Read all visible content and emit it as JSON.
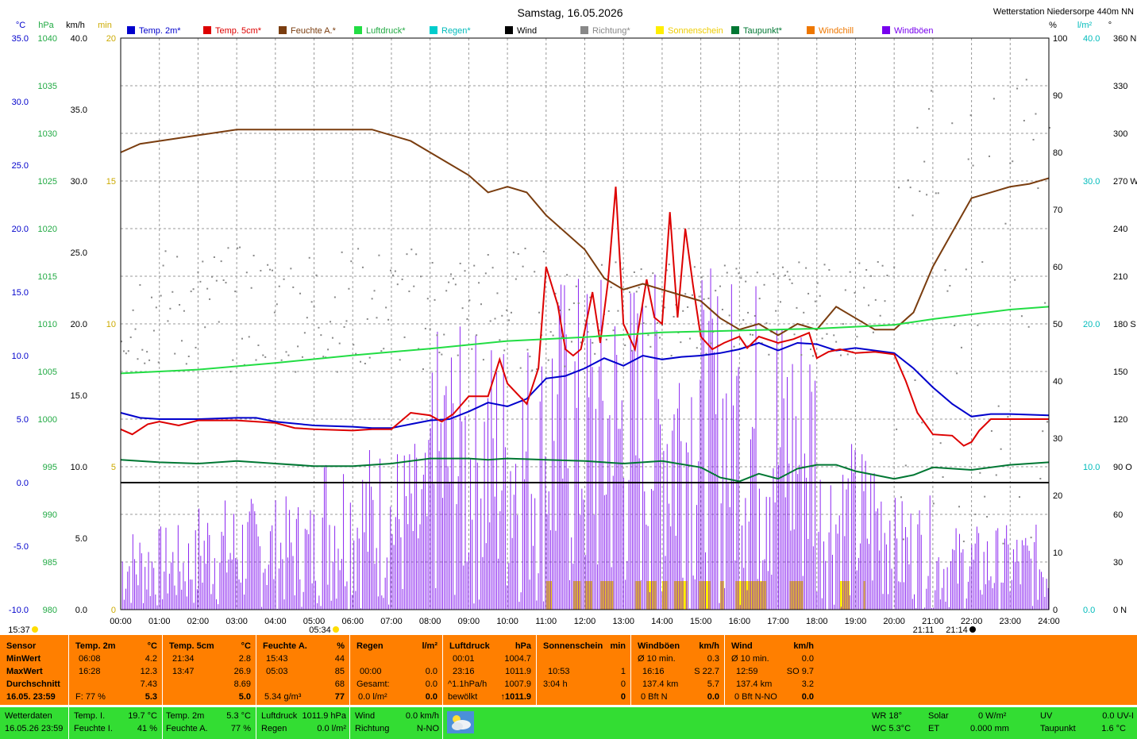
{
  "title": "Samstag, 16.05.2026",
  "station": "Wetterstation Niedersorpe 440m NN",
  "colors": {
    "temp2m": "#0000cc",
    "temp5cm": "#dd0000",
    "feuchte": "#7a3d0f",
    "luftdruck": "#22dd44",
    "regen": "#00cccc",
    "wind": "#000000",
    "richtung": "#888888",
    "sonne": "#ffee00",
    "taupunkt": "#007733",
    "windchill": "#ee7700",
    "windboeen": "#7700ee",
    "panel": "#ff7f00",
    "footer": "#33dd33"
  },
  "legend": [
    {
      "label": "Temp. 2m*",
      "color": "#0000cc"
    },
    {
      "label": "Temp. 5cm*",
      "color": "#dd0000"
    },
    {
      "label": "Feuchte A.*",
      "color": "#7a3d0f"
    },
    {
      "label": "Luftdruck*",
      "color": "#22dd44"
    },
    {
      "label": "Regen*",
      "color": "#00cccc"
    },
    {
      "label": "Wind",
      "color": "#000000"
    },
    {
      "label": "Richtung*",
      "color": "#888888"
    },
    {
      "label": "Sonnenschein",
      "color": "#ffee00"
    },
    {
      "label": "Taupunkt*",
      "color": "#007733"
    },
    {
      "label": "Windchill",
      "color": "#ee7700"
    },
    {
      "label": "Windböen",
      "color": "#7700ee"
    }
  ],
  "chart_data": {
    "type": "line",
    "x_unit": "hour",
    "xlim": [
      0,
      24
    ],
    "x_ticks": [
      "00:00",
      "01:00",
      "02:00",
      "03:00",
      "04:00",
      "05:00",
      "06:00",
      "07:00",
      "08:00",
      "09:00",
      "10:00",
      "11:00",
      "12:00",
      "13:00",
      "14:00",
      "15:00",
      "16:00",
      "17:00",
      "18:00",
      "19:00",
      "20:00",
      "21:00",
      "22:00",
      "23:00",
      "24:00"
    ],
    "axes": {
      "temp": {
        "unit": "°C",
        "ticks": [
          "35.0",
          "30.0",
          "25.0",
          "20.0",
          "15.0",
          "10.0",
          "5.0",
          "0.0",
          "-5.0",
          "-10.0"
        ],
        "range": [
          -10,
          35
        ]
      },
      "pressure": {
        "unit": "hPa",
        "ticks": [
          "1040",
          "1035",
          "1030",
          "1025",
          "1020",
          "1015",
          "1010",
          "1005",
          "1000",
          "995",
          "990",
          "985",
          "980"
        ],
        "range": [
          980,
          1040
        ]
      },
      "wind": {
        "unit": "km/h",
        "ticks": [
          "40.0",
          "35.0",
          "30.0",
          "25.0",
          "20.0",
          "15.0",
          "10.0",
          "5.0",
          "0.0"
        ],
        "range": [
          0,
          40
        ]
      },
      "sun": {
        "unit": "min",
        "ticks": [
          "20",
          "15",
          "10",
          "5",
          "0"
        ],
        "range": [
          0,
          20
        ]
      },
      "humidity": {
        "unit": "%",
        "ticks": [
          "100",
          "90",
          "80",
          "70",
          "60",
          "50",
          "40",
          "30",
          "20",
          "10",
          "0"
        ],
        "range": [
          0,
          100
        ]
      },
      "rain": {
        "unit": "l/m²",
        "ticks": [
          "40.0",
          "30.0",
          "20.0",
          "10.0",
          "0.0"
        ],
        "range": [
          0,
          40
        ]
      },
      "direction": {
        "unit": "°",
        "ticks": [
          "360 N",
          "330",
          "300",
          "270 W",
          "240",
          "210",
          "180 S",
          "150",
          "120",
          "90 O",
          "60",
          "30",
          "0 N"
        ],
        "range": [
          0,
          360
        ]
      }
    },
    "series": [
      {
        "name": "Temp. 2m*",
        "axis": "temp",
        "points": [
          [
            0,
            5.5
          ],
          [
            0.5,
            5.1
          ],
          [
            1,
            5.0
          ],
          [
            2,
            5.0
          ],
          [
            3,
            5.1
          ],
          [
            3.5,
            5.1
          ],
          [
            4,
            4.8
          ],
          [
            5,
            4.5
          ],
          [
            6,
            4.4
          ],
          [
            6.5,
            4.3
          ],
          [
            7,
            4.3
          ],
          [
            7.5,
            4.6
          ],
          [
            8,
            4.9
          ],
          [
            8.5,
            5.0
          ],
          [
            9,
            5.6
          ],
          [
            9.5,
            6.3
          ],
          [
            10,
            6.0
          ],
          [
            10.5,
            6.6
          ],
          [
            11,
            8.2
          ],
          [
            11.5,
            8.4
          ],
          [
            12,
            9.0
          ],
          [
            12.5,
            9.8
          ],
          [
            13,
            9.2
          ],
          [
            13.5,
            10.0
          ],
          [
            14,
            9.7
          ],
          [
            14.5,
            9.9
          ],
          [
            15,
            10.0
          ],
          [
            15.5,
            10.2
          ],
          [
            16,
            10.5
          ],
          [
            16.5,
            11.0
          ],
          [
            17,
            10.4
          ],
          [
            17.5,
            11.0
          ],
          [
            18,
            10.9
          ],
          [
            18.5,
            10.4
          ],
          [
            19,
            10.6
          ],
          [
            19.5,
            10.4
          ],
          [
            20,
            10.2
          ],
          [
            20.5,
            9.0
          ],
          [
            21,
            7.5
          ],
          [
            21.5,
            6.2
          ],
          [
            22,
            5.2
          ],
          [
            22.5,
            5.4
          ],
          [
            23,
            5.4
          ],
          [
            24,
            5.3
          ]
        ]
      },
      {
        "name": "Temp. 5cm*",
        "axis": "temp",
        "points": [
          [
            0,
            4.2
          ],
          [
            0.3,
            3.8
          ],
          [
            0.7,
            4.6
          ],
          [
            1,
            4.8
          ],
          [
            1.5,
            4.5
          ],
          [
            2,
            4.9
          ],
          [
            3,
            4.9
          ],
          [
            4,
            4.7
          ],
          [
            4.5,
            4.3
          ],
          [
            5,
            4.2
          ],
          [
            6,
            4.1
          ],
          [
            6.5,
            4.2
          ],
          [
            7,
            4.2
          ],
          [
            7.5,
            5.5
          ],
          [
            8,
            5.3
          ],
          [
            8.3,
            4.8
          ],
          [
            8.6,
            5.4
          ],
          [
            9,
            6.8
          ],
          [
            9.5,
            6.8
          ],
          [
            9.8,
            9.7
          ],
          [
            10,
            7.8
          ],
          [
            10.5,
            6.2
          ],
          [
            10.8,
            9.0
          ],
          [
            11,
            17.0
          ],
          [
            11.3,
            14.0
          ],
          [
            11.5,
            10.5
          ],
          [
            11.7,
            10.0
          ],
          [
            11.9,
            10.5
          ],
          [
            12,
            12.0
          ],
          [
            12.2,
            15.0
          ],
          [
            12.4,
            11.0
          ],
          [
            12.6,
            15.8
          ],
          [
            12.8,
            23.3
          ],
          [
            13,
            12.5
          ],
          [
            13.3,
            10.5
          ],
          [
            13.6,
            16.0
          ],
          [
            13.8,
            13.0
          ],
          [
            14,
            12.5
          ],
          [
            14.2,
            21.3
          ],
          [
            14.4,
            13.0
          ],
          [
            14.6,
            20.0
          ],
          [
            14.8,
            15.5
          ],
          [
            15,
            11.5
          ],
          [
            15.3,
            10.5
          ],
          [
            15.6,
            11.0
          ],
          [
            16,
            11.5
          ],
          [
            16.2,
            10.6
          ],
          [
            16.5,
            11.5
          ],
          [
            17,
            11.0
          ],
          [
            17.4,
            11.3
          ],
          [
            17.8,
            11.8
          ],
          [
            18,
            9.8
          ],
          [
            18.3,
            10.3
          ],
          [
            18.6,
            10.5
          ],
          [
            19,
            10.2
          ],
          [
            19.5,
            10.3
          ],
          [
            20,
            10.1
          ],
          [
            20.3,
            8.0
          ],
          [
            20.6,
            5.5
          ],
          [
            21,
            3.8
          ],
          [
            21.5,
            3.7
          ],
          [
            21.8,
            2.9
          ],
          [
            22,
            3.2
          ],
          [
            22.2,
            4.1
          ],
          [
            22.5,
            5.0
          ],
          [
            23,
            5.0
          ],
          [
            24,
            5.0
          ]
        ]
      },
      {
        "name": "Feuchte A.*",
        "axis": "humidity",
        "points": [
          [
            0,
            80
          ],
          [
            0.5,
            81.5
          ],
          [
            1,
            82
          ],
          [
            2,
            83
          ],
          [
            3,
            84
          ],
          [
            4,
            84
          ],
          [
            5,
            84
          ],
          [
            5.8,
            84
          ],
          [
            6.5,
            84
          ],
          [
            7,
            83
          ],
          [
            7.5,
            82
          ],
          [
            8,
            80
          ],
          [
            8.5,
            78
          ],
          [
            9,
            76
          ],
          [
            9.5,
            73
          ],
          [
            10,
            74
          ],
          [
            10.5,
            73
          ],
          [
            11,
            69
          ],
          [
            11.5,
            66
          ],
          [
            12,
            63
          ],
          [
            12.5,
            58
          ],
          [
            13,
            56
          ],
          [
            13.5,
            57
          ],
          [
            14,
            56
          ],
          [
            14.5,
            55
          ],
          [
            15,
            54
          ],
          [
            15.5,
            51
          ],
          [
            16,
            49
          ],
          [
            16.5,
            50
          ],
          [
            17,
            48
          ],
          [
            17.5,
            50
          ],
          [
            18,
            49
          ],
          [
            18.5,
            53
          ],
          [
            19,
            51
          ],
          [
            19.5,
            49
          ],
          [
            20,
            49
          ],
          [
            20.5,
            52
          ],
          [
            21,
            60
          ],
          [
            21.5,
            66
          ],
          [
            22,
            72
          ],
          [
            22.5,
            73
          ],
          [
            23,
            74
          ],
          [
            23.5,
            74.5
          ],
          [
            24,
            75.5
          ]
        ]
      },
      {
        "name": "Luftdruck*",
        "axis": "pressure",
        "points": [
          [
            0,
            1004.8
          ],
          [
            2,
            1005.2
          ],
          [
            4,
            1005.9
          ],
          [
            6,
            1006.7
          ],
          [
            8,
            1007.4
          ],
          [
            10,
            1008.2
          ],
          [
            12,
            1008.6
          ],
          [
            14,
            1009.1
          ],
          [
            16,
            1009.3
          ],
          [
            18,
            1009.5
          ],
          [
            20,
            1009.9
          ],
          [
            21,
            1010.5
          ],
          [
            22,
            1011.0
          ],
          [
            23,
            1011.5
          ],
          [
            24,
            1011.8
          ]
        ]
      },
      {
        "name": "Taupunkt*",
        "axis": "temp",
        "points": [
          [
            0,
            1.8
          ],
          [
            1,
            1.6
          ],
          [
            2,
            1.5
          ],
          [
            3,
            1.7
          ],
          [
            4,
            1.5
          ],
          [
            5,
            1.3
          ],
          [
            6,
            1.3
          ],
          [
            7,
            1.5
          ],
          [
            8,
            1.9
          ],
          [
            9,
            1.9
          ],
          [
            9.5,
            1.8
          ],
          [
            10,
            1.9
          ],
          [
            11,
            1.8
          ],
          [
            12,
            1.7
          ],
          [
            13,
            1.5
          ],
          [
            14,
            1.7
          ],
          [
            15,
            1.2
          ],
          [
            15.5,
            0.4
          ],
          [
            16,
            0.1
          ],
          [
            16.5,
            0.7
          ],
          [
            17,
            0.3
          ],
          [
            17.5,
            1.1
          ],
          [
            18,
            1.4
          ],
          [
            18.5,
            1.4
          ],
          [
            19,
            0.9
          ],
          [
            19.5,
            0.6
          ],
          [
            20,
            0.3
          ],
          [
            20.5,
            0.6
          ],
          [
            21,
            1.2
          ],
          [
            22,
            1.0
          ],
          [
            23,
            1.4
          ],
          [
            24,
            1.6
          ]
        ]
      }
    ],
    "wind_mean_kmh": 0.0,
    "sunshine_bars_hours": [
      [
        11.0,
        11.15
      ],
      [
        11.7,
        11.9
      ],
      [
        12.0,
        12.2
      ],
      [
        12.4,
        12.75
      ],
      [
        13.3,
        13.45
      ],
      [
        13.6,
        13.85
      ],
      [
        14.0,
        14.15
      ],
      [
        14.3,
        14.65
      ],
      [
        14.95,
        15.25
      ],
      [
        15.5,
        15.6
      ],
      [
        15.9,
        16.7
      ],
      [
        17.3,
        17.65
      ],
      [
        18.6,
        18.85
      ],
      [
        19.2,
        19.25
      ]
    ]
  },
  "panel": {
    "sensor": {
      "header": "Sensor",
      "rows": [
        "MinWert",
        "MaxWert",
        "Durchschnitt",
        "16.05. 23:59"
      ]
    },
    "temp2m": {
      "header": "Temp. 2m",
      "unit": "°C",
      "min_time": "06:08",
      "min": "4.2",
      "max_time": "16:28",
      "max": "12.3",
      "avg": "7.43",
      "extra": "F: 77 %",
      "current": "5.3"
    },
    "temp5cm": {
      "header": "Temp. 5cm",
      "unit": "°C",
      "min_time": "21:34",
      "min": "2.8",
      "max_time": "13:47",
      "max": "26.9",
      "avg": "8.69",
      "current": "5.0"
    },
    "feuchte": {
      "header": "Feuchte A.",
      "unit": "%",
      "min_time": "15:43",
      "min": "44",
      "max_time": "05:03",
      "max": "85",
      "avg": "68",
      "extra": "5.34 g/m³",
      "current": "77"
    },
    "regen": {
      "header": "Regen",
      "unit": "l/m²",
      "r1_time": "00:00",
      "r1": "0.0",
      "r2_label": "Gesamt:",
      "r2": "0.0",
      "r3": "0.0 l/m²",
      "current": "0.0"
    },
    "luftdruck": {
      "header": "Luftdruck",
      "unit": "hPa",
      "min_time": "00:01",
      "min": "1004.7",
      "max_time": "23:16",
      "max": "1011.9",
      "tend_label": "^1.1hPa/h",
      "tend": "1007.9",
      "sky": "bewölkt",
      "current": "↑1011.9"
    },
    "sonne": {
      "header": "Sonnenschein",
      "unit": "min",
      "r1_time": "10:53",
      "r1": "1",
      "r2_time": "3:04 h",
      "r2": "0",
      "current": "0"
    },
    "windboeen": {
      "header": "Windböen",
      "unit": "km/h",
      "r1_label": "Ø 10 min.",
      "r1": "0.3",
      "r2_time": "16:16",
      "r2": "S 22.7",
      "r3_label": "137.4 km",
      "r3": "5.7",
      "r4_label": "0 Bft N",
      "current": "0.0"
    },
    "wind": {
      "header": "Wind",
      "unit": "km/h",
      "r1_label": "Ø 10 min.",
      "r1": "0.0",
      "r2_time": "12:59",
      "r2": "SO 9.7",
      "r3_label": "137.4 km",
      "r3": "3.2",
      "r4_label": "0 Bft N-NO",
      "current": "0.0"
    }
  },
  "footer": {
    "label": "Wetterdaten",
    "datetime": "16.05.26 23:59",
    "temp_i_label": "Temp. I.",
    "temp_i": "19.7 °C",
    "feuchte_i_label": "Feuchte I.",
    "feuchte_i": "41 %",
    "temp_2m_label": "Temp. 2m",
    "temp_2m": "5.3 °C",
    "feuchte_a_label": "Feuchte A.",
    "feuchte_a": "77 %",
    "luftdruck_label": "Luftdruck",
    "luftdruck": "1011.9 hPa",
    "regen_label": "Regen",
    "regen": "0.0 l/m²",
    "wind_label": "Wind",
    "wind": "0.0 km/h",
    "richtung_label": "Richtung",
    "richtung": "N-NO",
    "wr_label": "WR 18°",
    "wc_label": "WC 5.3°C",
    "solar_label": "Solar",
    "solar": "0 W/m²",
    "et_label": "ET",
    "et": "0.000 mm",
    "uv_label": "UV",
    "uv": "0.0 UV-I",
    "taupunkt_label": "Taupunkt",
    "taupunkt": "1.6 °C",
    "icon": "cloud-sun-icon"
  },
  "markers": {
    "sunrise": "05:34",
    "sunset": "21:11",
    "moon": "21:14",
    "left_time": "15:37"
  }
}
